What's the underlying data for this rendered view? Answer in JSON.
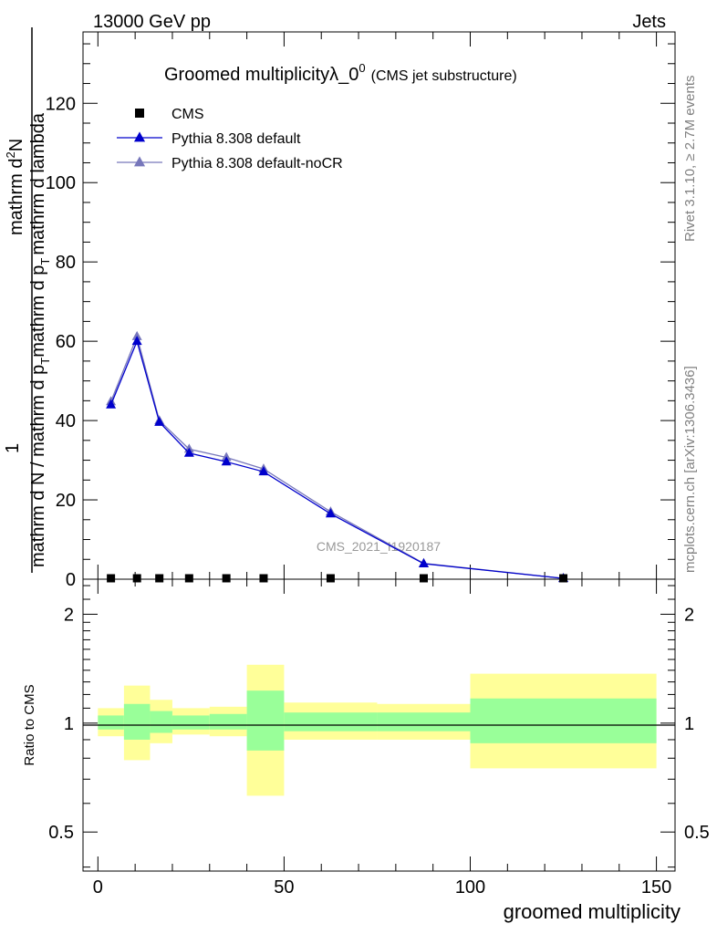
{
  "header": {
    "energy": "13000 GeV pp",
    "category": "Jets"
  },
  "side_labels": {
    "rivet": "Rivet 3.1.10, ≥ 2.7M events",
    "mcplots": "mcplots.cern.ch [arXiv:1306.3436]"
  },
  "chart_data": [
    {
      "type": "line",
      "panel": "main",
      "title": "Groomed multiplicityλ_0",
      "title_sup": "0",
      "title_suffix": "(CMS jet substructure)",
      "ylabel_numerator": "mathrm d",
      "ylabel_numerator_sup": "2",
      "ylabel_numerator_end": "N",
      "ylabel_one": "1",
      "ylabel_denominator": "mathrm d N / mathrm d p",
      "ylabel_denominator_sub": "T",
      "ylabel_denominator_mid": "mathrm d p",
      "ylabel_denominator_sub2": "T",
      "ylabel_denominator_end": "mathrm d lambda",
      "watermark": "CMS_2021_I1920187",
      "xlim": [
        -4,
        155
      ],
      "ylim": [
        0,
        138
      ],
      "yticks": [
        0,
        20,
        40,
        60,
        80,
        100,
        120
      ],
      "legend_placement": "top-left",
      "series": [
        {
          "name": "CMS",
          "color": "#000000",
          "marker": "square",
          "x": [
            3.5,
            10.5,
            16.5,
            24.5,
            34.5,
            44.5,
            62.5,
            87.5,
            125
          ],
          "values": [
            0.0,
            0.0,
            0.0,
            0.0,
            0.0,
            0.0,
            0.0,
            0.0,
            0.0
          ]
        },
        {
          "name": "Pythia 8.308 default",
          "color": "#0000cc",
          "marker": "triangle",
          "x": [
            3.5,
            10.5,
            16.5,
            24.5,
            34.5,
            44.5,
            62.5,
            87.5,
            125
          ],
          "values": [
            44,
            60,
            39.6,
            31.8,
            29.6,
            27.1,
            16.5,
            3.9,
            0.2
          ]
        },
        {
          "name": "Pythia 8.308 default-noCR",
          "color": "#7777bb",
          "marker": "triangle",
          "x": [
            3.5,
            10.5,
            16.5,
            24.5,
            34.5,
            44.5,
            62.5,
            87.5,
            125
          ],
          "values": [
            44.8,
            61.2,
            40,
            32.8,
            30.7,
            27.8,
            17,
            4,
            0.2
          ]
        }
      ]
    },
    {
      "type": "area",
      "panel": "ratio",
      "ylabel": "Ratio to CMS",
      "xlabel": "groomed multiplicity",
      "xlim": [
        -4,
        155
      ],
      "ylim": [
        0.39,
        2.5
      ],
      "yscale": "log",
      "xticks": [
        0,
        50,
        100,
        150
      ],
      "yticks": [
        0.5,
        1,
        2
      ],
      "bins": [
        {
          "lo": 0,
          "hi": 7,
          "stat_lo": 0.96,
          "stat_hi": 1.05,
          "tot_lo": 0.92,
          "tot_hi": 1.1
        },
        {
          "lo": 7,
          "hi": 14,
          "stat_lo": 0.9,
          "stat_hi": 1.13,
          "tot_lo": 0.79,
          "tot_hi": 1.27
        },
        {
          "lo": 14,
          "hi": 20,
          "stat_lo": 0.94,
          "stat_hi": 1.08,
          "tot_lo": 0.88,
          "tot_hi": 1.16
        },
        {
          "lo": 20,
          "hi": 30,
          "stat_lo": 0.96,
          "stat_hi": 1.05,
          "tot_lo": 0.93,
          "tot_hi": 1.1
        },
        {
          "lo": 30,
          "hi": 40,
          "stat_lo": 0.96,
          "stat_hi": 1.06,
          "tot_lo": 0.92,
          "tot_hi": 1.11
        },
        {
          "lo": 40,
          "hi": 50,
          "stat_lo": 0.84,
          "stat_hi": 1.23,
          "tot_lo": 0.63,
          "tot_hi": 1.45
        },
        {
          "lo": 50,
          "hi": 75,
          "stat_lo": 0.95,
          "stat_hi": 1.07,
          "tot_lo": 0.9,
          "tot_hi": 1.14
        },
        {
          "lo": 75,
          "hi": 100,
          "stat_lo": 0.95,
          "stat_hi": 1.07,
          "tot_lo": 0.9,
          "tot_hi": 1.13
        },
        {
          "lo": 100,
          "hi": 150,
          "stat_lo": 0.88,
          "stat_hi": 1.17,
          "tot_lo": 0.75,
          "tot_hi": 1.37
        }
      ],
      "stat_color": "#99ff99",
      "tot_color": "#ffff99"
    }
  ]
}
